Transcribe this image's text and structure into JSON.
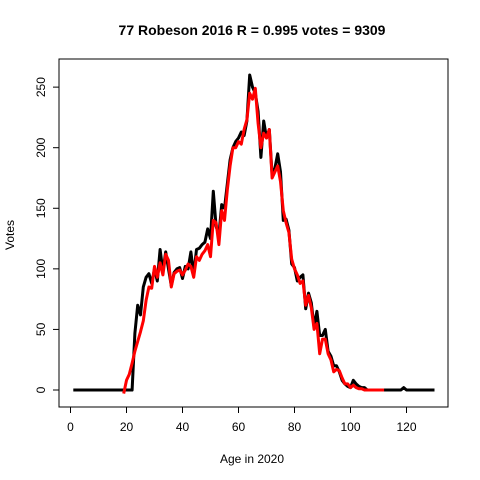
{
  "chart_data": {
    "type": "line",
    "title": "77 Robeson 2016 R = 0.995 votes = 9309",
    "xlabel": "Age in 2020",
    "ylabel": "Votes",
    "xlim": [
      0,
      130
    ],
    "ylim": [
      0,
      260
    ],
    "x_ticks": [
      0,
      20,
      40,
      60,
      80,
      100,
      120
    ],
    "y_ticks": [
      0,
      50,
      100,
      150,
      200,
      250
    ],
    "grid": false,
    "legend": "none",
    "series": [
      {
        "color": "#000000",
        "x": [
          1,
          2,
          3,
          4,
          5,
          6,
          7,
          8,
          9,
          10,
          11,
          12,
          13,
          14,
          15,
          16,
          17,
          18,
          19,
          20,
          21,
          22,
          23,
          24,
          25,
          26,
          27,
          28,
          29,
          30,
          31,
          32,
          33,
          34,
          35,
          36,
          37,
          38,
          39,
          40,
          41,
          42,
          43,
          44,
          45,
          46,
          47,
          48,
          49,
          50,
          51,
          52,
          53,
          54,
          55,
          56,
          57,
          58,
          59,
          60,
          61,
          62,
          63,
          64,
          65,
          66,
          67,
          68,
          69,
          70,
          71,
          72,
          73,
          74,
          75,
          76,
          77,
          78,
          79,
          80,
          81,
          82,
          83,
          84,
          85,
          86,
          87,
          88,
          89,
          90,
          91,
          92,
          93,
          94,
          95,
          96,
          97,
          98,
          99,
          100,
          101,
          102,
          103,
          104,
          105,
          106,
          107,
          108,
          109,
          110,
          111,
          112,
          113,
          114,
          115,
          116,
          117,
          118,
          119,
          120,
          121,
          122,
          123,
          124,
          125,
          126,
          127,
          128,
          129,
          130
        ],
        "y": [
          0,
          0,
          0,
          0,
          0,
          0,
          0,
          0,
          0,
          0,
          0,
          0,
          0,
          0,
          0,
          0,
          0,
          0,
          0,
          0,
          0,
          0,
          47,
          70,
          62,
          85,
          93,
          96,
          88,
          100,
          90,
          116,
          98,
          114,
          100,
          86,
          97,
          100,
          101,
          92,
          102,
          100,
          114,
          95,
          116,
          117,
          120,
          122,
          133,
          125,
          164,
          135,
          128,
          153,
          150,
          170,
          190,
          200,
          205,
          208,
          213,
          210,
          222,
          260,
          250,
          245,
          230,
          192,
          222,
          208,
          215,
          178,
          183,
          195,
          180,
          140,
          141,
          132,
          104,
          101,
          90,
          93,
          95,
          67,
          80,
          72,
          52,
          65,
          45,
          45,
          50,
          32,
          28,
          20,
          20,
          15,
          8,
          5,
          3,
          2,
          8,
          5,
          3,
          2,
          2,
          0,
          0,
          0,
          0,
          0,
          0,
          0,
          0,
          0,
          0,
          0,
          0,
          0,
          2,
          0,
          0,
          0,
          0,
          0,
          0,
          0,
          0,
          0,
          0,
          0
        ]
      },
      {
        "color": "#ff0000",
        "x": [
          19,
          20,
          21,
          22,
          23,
          24,
          25,
          26,
          27,
          28,
          29,
          30,
          31,
          32,
          33,
          34,
          35,
          36,
          37,
          38,
          39,
          40,
          41,
          42,
          43,
          44,
          45,
          46,
          47,
          48,
          49,
          50,
          51,
          52,
          53,
          54,
          55,
          56,
          57,
          58,
          59,
          60,
          61,
          62,
          63,
          64,
          65,
          66,
          67,
          68,
          69,
          70,
          71,
          72,
          73,
          74,
          75,
          76,
          77,
          78,
          79,
          80,
          81,
          82,
          83,
          84,
          85,
          86,
          87,
          88,
          89,
          90,
          91,
          92,
          93,
          94,
          95,
          96,
          97,
          98,
          99,
          100,
          101,
          102,
          103,
          104,
          105,
          106,
          107,
          108,
          109,
          110,
          111,
          112
        ],
        "y": [
          -3,
          8,
          13,
          22,
          32,
          40,
          48,
          57,
          74,
          85,
          84,
          102,
          93,
          105,
          95,
          112,
          107,
          85,
          96,
          98,
          99,
          95,
          99,
          104,
          102,
          93,
          110,
          107,
          112,
          115,
          120,
          110,
          140,
          138,
          120,
          148,
          140,
          165,
          185,
          200,
          200,
          205,
          203,
          215,
          223,
          245,
          240,
          249,
          220,
          200,
          212,
          208,
          215,
          175,
          180,
          185,
          172,
          148,
          138,
          130,
          108,
          100,
          95,
          88,
          90,
          70,
          78,
          68,
          50,
          55,
          30,
          42,
          42,
          30,
          25,
          15,
          17,
          16,
          10,
          5,
          5,
          2,
          4,
          2,
          1,
          1,
          0,
          0,
          0,
          0,
          0,
          0,
          0,
          0
        ]
      }
    ]
  }
}
